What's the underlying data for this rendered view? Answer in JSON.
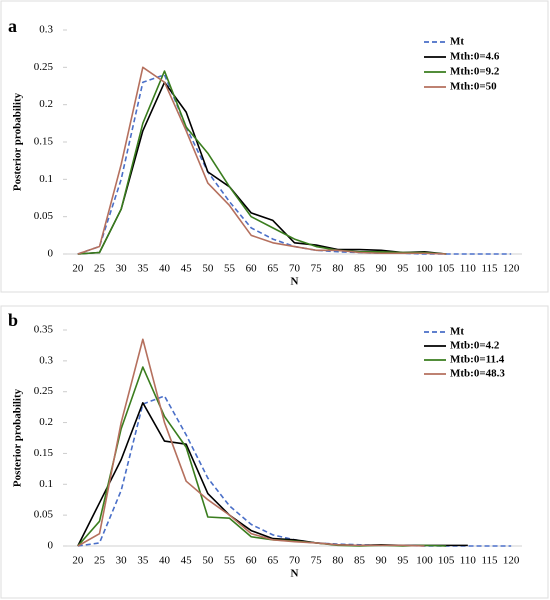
{
  "chart_data": [
    {
      "type": "line",
      "label": "a",
      "ylabel": "Posterior probability",
      "xlabel": "N",
      "categories": [
        20,
        25,
        30,
        35,
        40,
        45,
        50,
        55,
        60,
        65,
        70,
        75,
        80,
        85,
        90,
        95,
        100,
        105,
        110,
        115,
        120
      ],
      "ylim": [
        0,
        0.3
      ],
      "yticks": [
        0,
        0.05,
        0.1,
        0.15,
        0.2,
        0.25,
        0.3
      ],
      "series": [
        {
          "name": "Mt",
          "color": "#4a6fc8",
          "dash": true,
          "values": [
            0,
            0.01,
            0.1,
            0.23,
            0.24,
            0.17,
            0.11,
            0.07,
            0.035,
            0.02,
            0.01,
            0.005,
            0.003,
            0.002,
            0.001,
            0.001,
            0,
            0,
            0,
            0,
            0
          ]
        },
        {
          "name": "Mth:0=4.6",
          "color": "#000000",
          "dash": false,
          "values": [
            0,
            0.002,
            0.06,
            0.165,
            0.23,
            0.19,
            0.11,
            0.09,
            0.055,
            0.045,
            0.015,
            0.012,
            0.006,
            0.006,
            0.005,
            0.002,
            0.003,
            0,
            null,
            null,
            null
          ]
        },
        {
          "name": "Mth:0=9.2",
          "color": "#3a7d1e",
          "dash": false,
          "values": [
            0,
            0.002,
            0.06,
            0.175,
            0.245,
            0.17,
            0.135,
            0.09,
            0.05,
            0.035,
            0.02,
            0.01,
            0.005,
            0.003,
            0.003,
            0.002,
            0.002,
            0,
            null,
            null,
            null
          ]
        },
        {
          "name": "Mth:0=50",
          "color": "#b5705e",
          "dash": false,
          "values": [
            0,
            0.01,
            0.12,
            0.25,
            0.23,
            0.165,
            0.095,
            0.065,
            0.025,
            0.015,
            0.01,
            0.005,
            0.005,
            0.002,
            0.001,
            0.001,
            0.001,
            0,
            null,
            null,
            null
          ]
        }
      ]
    },
    {
      "type": "line",
      "label": "b",
      "ylabel": "Posterior probability",
      "xlabel": "N",
      "categories": [
        20,
        25,
        30,
        35,
        40,
        45,
        50,
        55,
        60,
        65,
        70,
        75,
        80,
        85,
        90,
        95,
        100,
        105,
        110,
        115,
        120
      ],
      "ylim": [
        0,
        0.35
      ],
      "yticks": [
        0,
        0.05,
        0.1,
        0.15,
        0.2,
        0.25,
        0.3,
        0.35
      ],
      "series": [
        {
          "name": "Mt",
          "color": "#4a6fc8",
          "dash": true,
          "values": [
            0,
            0.005,
            0.09,
            0.23,
            0.243,
            0.18,
            0.11,
            0.065,
            0.035,
            0.018,
            0.01,
            0.005,
            0.003,
            0.002,
            0.001,
            0.001,
            0,
            0,
            0,
            0,
            0
          ]
        },
        {
          "name": "Mtb:0=4.2",
          "color": "#000000",
          "dash": false,
          "values": [
            0,
            0.07,
            0.14,
            0.232,
            0.17,
            0.165,
            0.085,
            0.05,
            0.025,
            0.012,
            0.01,
            0.005,
            0.002,
            0.001,
            0.002,
            0.001,
            0.001,
            0.001,
            0.001,
            null,
            null
          ]
        },
        {
          "name": "Mtb:0=11.4",
          "color": "#3a7d1e",
          "dash": false,
          "values": [
            0,
            0.04,
            0.19,
            0.29,
            0.21,
            0.16,
            0.047,
            0.045,
            0.015,
            0.01,
            0.008,
            0.005,
            0.001,
            0,
            0.001,
            0,
            0.001,
            0,
            null,
            null,
            null
          ]
        },
        {
          "name": "Mtb:0=48.3",
          "color": "#b5705e",
          "dash": false,
          "values": [
            0,
            0.02,
            0.2,
            0.335,
            0.2,
            0.105,
            0.075,
            0.05,
            0.02,
            0.01,
            0.007,
            0.005,
            0.002,
            0.001,
            0.001,
            0.001,
            0,
            null,
            null,
            null,
            null
          ]
        }
      ]
    }
  ]
}
